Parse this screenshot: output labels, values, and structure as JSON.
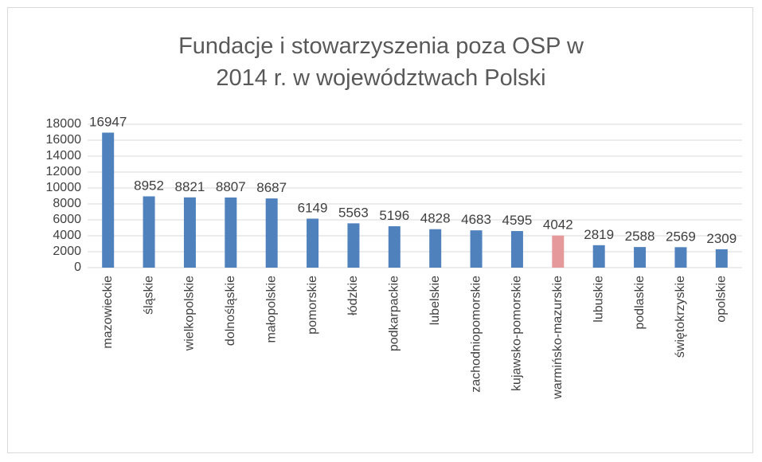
{
  "chart_data": {
    "type": "bar",
    "title": "Fundacje i stowarzyszenia poza OSP w 2014 r. w województwach Polski",
    "categories": [
      "mazowieckie",
      "śląskie",
      "wielkopolskie",
      "dolnośląskie",
      "małopolskie",
      "pomorskie",
      "łódzkie",
      "podkarpackie",
      "lubelskie",
      "zachodniopomorskie",
      "kujawsko-pomorskie",
      "warmińsko-mazurskie",
      "lubuskie",
      "podlaskie",
      "świętokrzyskie",
      "opolskie"
    ],
    "values": [
      16947,
      8952,
      8821,
      8807,
      8687,
      6149,
      5563,
      5196,
      4828,
      4683,
      4595,
      4042,
      2819,
      2588,
      2569,
      2309
    ],
    "colors": [
      "#4f81bd",
      "#4f81bd",
      "#4f81bd",
      "#4f81bd",
      "#4f81bd",
      "#4f81bd",
      "#4f81bd",
      "#4f81bd",
      "#4f81bd",
      "#4f81bd",
      "#4f81bd",
      "#e6999b",
      "#4f81bd",
      "#4f81bd",
      "#4f81bd",
      "#4f81bd"
    ],
    "ylim": [
      0,
      18000
    ],
    "yticks": [
      0,
      2000,
      4000,
      6000,
      8000,
      10000,
      12000,
      14000,
      16000,
      18000
    ],
    "grid": true
  }
}
